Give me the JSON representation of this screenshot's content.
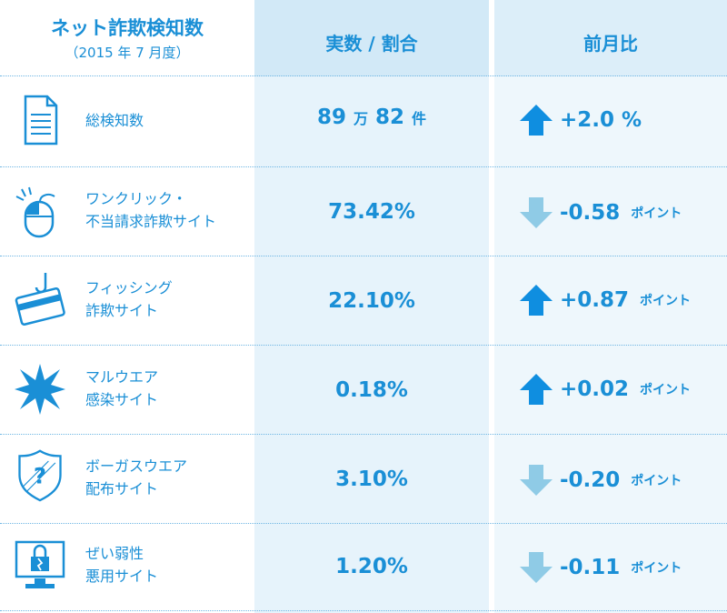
{
  "header": {
    "title": "ネット詐欺検知数",
    "subtitle": "（2015 年 7 月度）",
    "col_value": "実数 / 割合",
    "col_change": "前月比"
  },
  "chart_data": {
    "type": "table",
    "columns": [
      "ネット詐欺検知数",
      "実数 / 割合",
      "前月比"
    ],
    "rows": [
      {
        "icon": "document-icon",
        "label_lines": [
          "総検知数"
        ],
        "value_main": "89",
        "value_unit1": "万",
        "value_num2": "82",
        "value_unit2": "件",
        "direction": "up",
        "change": "+2.0",
        "change_unit": "%"
      },
      {
        "icon": "mouse-click-icon",
        "label_lines": [
          "ワンクリック・",
          "不当請求詐欺サイト"
        ],
        "value_main": "73.42%",
        "direction": "down",
        "change": "-0.58",
        "change_unit": "ポイント"
      },
      {
        "icon": "credit-card-hook-icon",
        "label_lines": [
          "フィッシング",
          "詐欺サイト"
        ],
        "value_main": "22.10%",
        "direction": "up",
        "change": "+0.87",
        "change_unit": "ポイント"
      },
      {
        "icon": "burst-icon",
        "label_lines": [
          "マルウエア",
          "感染サイト"
        ],
        "value_main": "0.18%",
        "direction": "up",
        "change": "+0.02",
        "change_unit": "ポイント"
      },
      {
        "icon": "shield-question-icon",
        "label_lines": [
          "ボーガスウエア",
          "配布サイト"
        ],
        "value_main": "3.10%",
        "direction": "down",
        "change": "-0.20",
        "change_unit": "ポイント"
      },
      {
        "icon": "monitor-lock-icon",
        "label_lines": [
          "ぜい弱性",
          "悪用サイト"
        ],
        "value_main": "1.20%",
        "direction": "down",
        "change": "-0.11",
        "change_unit": "ポイント"
      }
    ]
  },
  "colors": {
    "text": "#1a8fd6",
    "arrow_up": "#0f8ee0",
    "arrow_down": "#8fcbe6",
    "col2_bg": "#e6f3fb",
    "col3_bg": "#eef7fc"
  }
}
